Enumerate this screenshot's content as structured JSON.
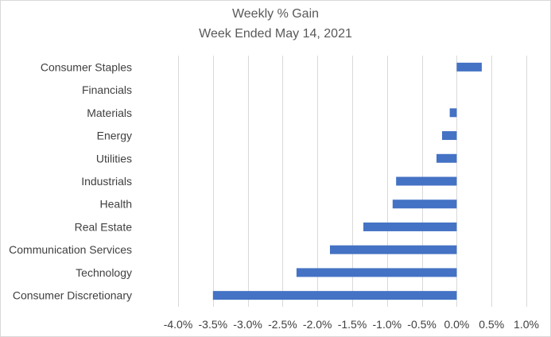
{
  "chart_data": {
    "type": "bar",
    "orientation": "horizontal",
    "title": "Weekly % Gain",
    "subtitle": "Week Ended May 14, 2021",
    "categories": [
      "Consumer Staples",
      "Financials",
      "Materials",
      "Energy",
      "Utilities",
      "Industrials",
      "Health",
      "Real Estate",
      "Communication Services",
      "Technology",
      "Consumer Discretionary"
    ],
    "values": [
      0.36,
      0.0,
      -0.1,
      -0.21,
      -0.29,
      -0.87,
      -0.92,
      -1.34,
      -1.82,
      -2.3,
      -3.5
    ],
    "xlim": [
      -4.0,
      1.0
    ],
    "x_ticks": [
      "-4.0%",
      "-3.5%",
      "-3.0%",
      "-2.5%",
      "-2.0%",
      "-1.5%",
      "-1.0%",
      "-0.5%",
      "0.0%",
      "0.5%",
      "1.0%"
    ],
    "x_tick_values": [
      -4.0,
      -3.5,
      -3.0,
      -2.5,
      -2.0,
      -1.5,
      -1.0,
      -0.5,
      0.0,
      0.5,
      1.0
    ],
    "grid": true,
    "bar_color": "#4472c4",
    "grid_color": "#d9d9d9"
  }
}
